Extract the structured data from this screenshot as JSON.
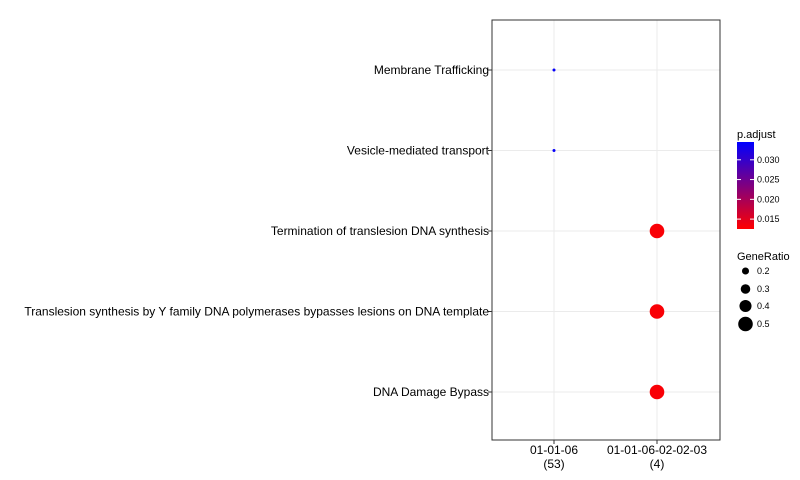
{
  "chart_data": {
    "type": "scatter",
    "x_categories": [
      {
        "label": "01-01-06",
        "count": "(53)"
      },
      {
        "label": "01-01-06-02-02-03",
        "count": "(4)"
      }
    ],
    "y_categories": [
      "Membrane Trafficking",
      "Vesicle-mediated transport",
      "Termination of translesion DNA synthesis",
      "Translesion synthesis by Y family DNA polymerases bypasses lesions on DNA template",
      "DNA Damage Bypass"
    ],
    "points": [
      {
        "x": "01-01-06",
        "y": "Membrane Trafficking",
        "gene_ratio": 0.038,
        "p_adjust": 0.034
      },
      {
        "x": "01-01-06",
        "y": "Vesicle-mediated transport",
        "gene_ratio": 0.038,
        "p_adjust": 0.034
      },
      {
        "x": "01-01-06-02-02-03",
        "y": "Termination of translesion DNA synthesis",
        "gene_ratio": 0.5,
        "p_adjust": 0.013
      },
      {
        "x": "01-01-06-02-02-03",
        "y": "Translesion synthesis by Y family DNA polymerases bypasses lesions on DNA template",
        "gene_ratio": 0.5,
        "p_adjust": 0.013
      },
      {
        "x": "01-01-06-02-02-03",
        "y": "DNA Damage Bypass",
        "gene_ratio": 0.5,
        "p_adjust": 0.013
      }
    ],
    "grid": true,
    "color_legend": {
      "title": "p.adjust",
      "ticks": [
        "0.030",
        "0.025",
        "0.020",
        "0.015"
      ],
      "tick_values": [
        0.03,
        0.025,
        0.02,
        0.015
      ],
      "range": [
        0.0125,
        0.0345
      ],
      "low_color": "#ff0000",
      "high_color": "#0000ff"
    },
    "size_legend": {
      "title": "GeneRatio",
      "ticks": [
        "0.2",
        "0.3",
        "0.4",
        "0.5"
      ],
      "tick_values": [
        0.2,
        0.3,
        0.4,
        0.5
      ]
    },
    "legend_position": "right"
  }
}
